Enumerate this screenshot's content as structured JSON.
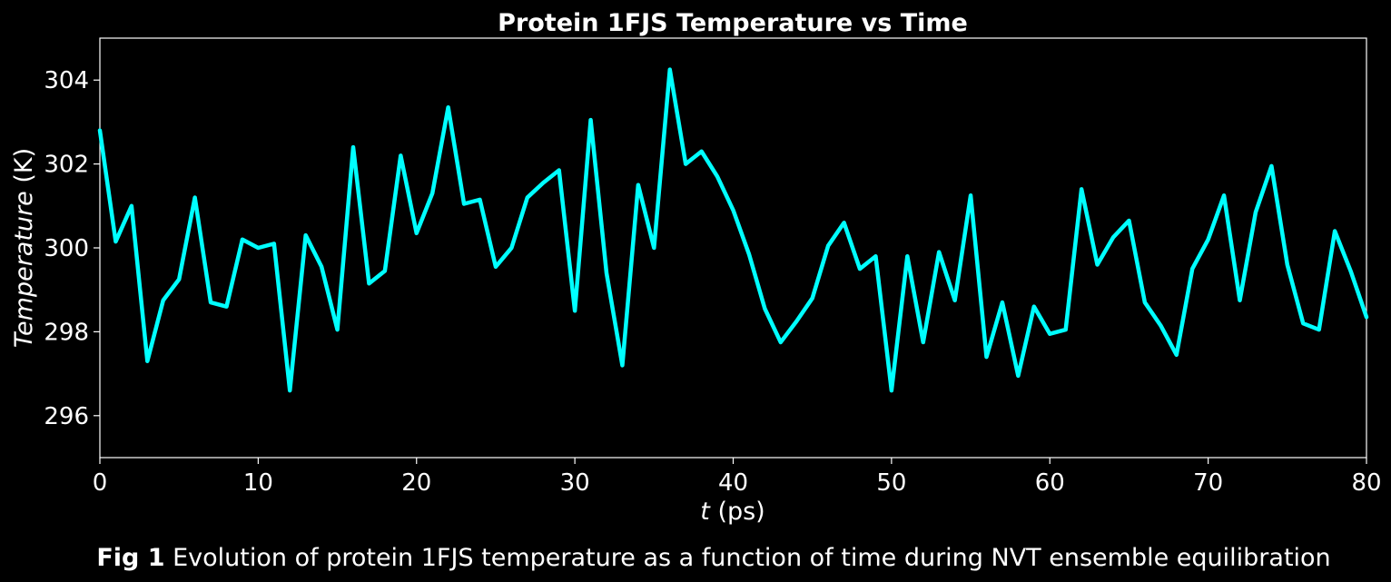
{
  "chart_data": {
    "type": "line",
    "title": "Protein 1FJS Temperature vs Time",
    "xlabel_italic": "t",
    "xlabel_unit": " (ps)",
    "ylabel_italic": "Temperature",
    "ylabel_unit": " (K)",
    "xlim": [
      0,
      80
    ],
    "ylim": [
      295,
      305
    ],
    "xticks": [
      0,
      10,
      20,
      30,
      40,
      50,
      60,
      70,
      80
    ],
    "yticks": [
      296,
      298,
      300,
      302,
      304
    ],
    "grid": false,
    "line_color": "#00ffff",
    "background_color": "#000000",
    "axis_color": "#ffffff",
    "x": [
      0,
      1,
      2,
      3,
      4,
      5,
      6,
      7,
      8,
      9,
      10,
      11,
      12,
      13,
      14,
      15,
      16,
      17,
      18,
      19,
      20,
      21,
      22,
      23,
      24,
      25,
      26,
      27,
      28,
      29,
      30,
      31,
      32,
      33,
      34,
      35,
      36,
      37,
      38,
      39,
      40,
      41,
      42,
      43,
      44,
      45,
      46,
      47,
      48,
      49,
      50,
      51,
      52,
      53,
      54,
      55,
      56,
      57,
      58,
      59,
      60,
      61,
      62,
      63,
      64,
      65,
      66,
      67,
      68,
      69,
      70,
      71,
      72,
      73,
      74,
      75,
      76,
      77,
      78,
      79,
      80
    ],
    "values": [
      302.8,
      300.15,
      301.0,
      297.3,
      298.75,
      299.25,
      301.2,
      298.7,
      298.6,
      300.2,
      300.0,
      300.1,
      296.6,
      300.3,
      299.55,
      298.05,
      302.4,
      299.15,
      299.45,
      302.2,
      300.35,
      301.3,
      303.35,
      301.05,
      301.15,
      299.55,
      300.0,
      301.2,
      301.55,
      301.85,
      298.5,
      303.05,
      299.4,
      297.2,
      301.5,
      300.0,
      304.25,
      302.0,
      302.3,
      301.7,
      300.9,
      299.85,
      298.55,
      297.75,
      298.25,
      298.8,
      300.05,
      300.6,
      299.5,
      299.8,
      296.6,
      299.8,
      297.75,
      299.9,
      298.75,
      301.25,
      297.4,
      298.7,
      296.95,
      298.6,
      297.95,
      298.05,
      301.4,
      299.6,
      300.25,
      300.65,
      298.7,
      298.15,
      297.45,
      299.5,
      300.2,
      301.25,
      298.75,
      300.85,
      301.95,
      299.6,
      298.2,
      298.05,
      300.4,
      299.45,
      298.35
    ]
  },
  "caption": {
    "bold": "Fig 1",
    "text": " Evolution of protein 1FJS temperature as a function of time during NVT ensemble equilibration"
  }
}
